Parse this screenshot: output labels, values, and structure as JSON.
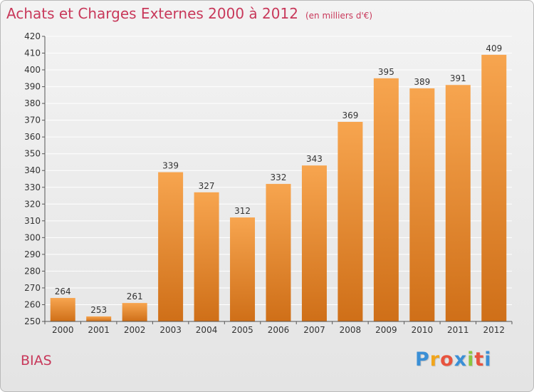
{
  "title": "Achats et Charges Externes 2000 à 2012",
  "subtitle": "(en milliers d'€)",
  "commune": "BIAS",
  "logo": {
    "letters": [
      "P",
      "r",
      "o",
      "x",
      "i",
      "t",
      "i"
    ],
    "colors": [
      "#3a8fd6",
      "#f1a51c",
      "#e8533e",
      "#3a8fd6",
      "#8cc63f",
      "#e8533e",
      "#3a8fd6"
    ]
  },
  "colors": {
    "bar_top": "#f7a54f",
    "bar_bottom": "#cf6f18",
    "grid": "#ffffff",
    "axis": "#555555",
    "title": "#c8385a"
  },
  "chart_data": {
    "type": "bar",
    "title": "Achats et Charges Externes 2000 à 2012",
    "subtitle": "(en milliers d'€)",
    "xlabel": "",
    "ylabel": "",
    "categories": [
      "2000",
      "2001",
      "2002",
      "2003",
      "2004",
      "2005",
      "2006",
      "2007",
      "2008",
      "2009",
      "2010",
      "2011",
      "2012"
    ],
    "values": [
      264,
      253,
      261,
      339,
      327,
      312,
      332,
      343,
      369,
      395,
      389,
      391,
      409
    ],
    "ylim": [
      250,
      420
    ],
    "yticks": [
      250,
      260,
      270,
      280,
      290,
      300,
      310,
      320,
      330,
      340,
      350,
      360,
      370,
      380,
      390,
      400,
      410,
      420
    ],
    "grid": true,
    "data_labels": true
  }
}
